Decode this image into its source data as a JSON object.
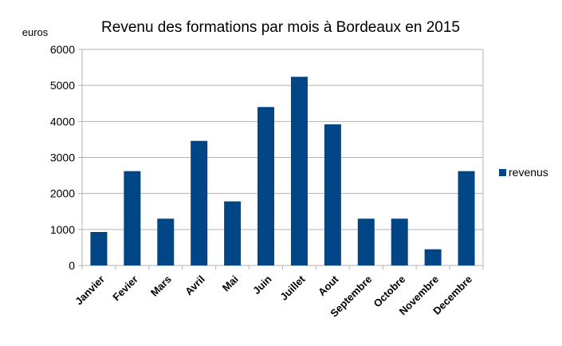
{
  "chart_data": {
    "type": "bar",
    "title": "Revenu des formations par mois  à Bordeaux en 2015",
    "ylabel": "euros",
    "xlabel": "",
    "categories": [
      "Janvier",
      "Fevier",
      "Mars",
      "Avril",
      "Mai",
      "Juin",
      "Juillet",
      "Aout",
      "Septembre",
      "Octobre",
      "Novembre",
      "Decembre"
    ],
    "series": [
      {
        "name": "revenus",
        "color": "#004586",
        "values": [
          930,
          2620,
          1300,
          3460,
          1780,
          4400,
          5240,
          3920,
          1300,
          1300,
          450,
          2620
        ]
      }
    ],
    "ylim": [
      0,
      6000
    ],
    "yticks": [
      0,
      1000,
      2000,
      3000,
      4000,
      5000,
      6000
    ],
    "grid": true,
    "legend_position": "right"
  }
}
